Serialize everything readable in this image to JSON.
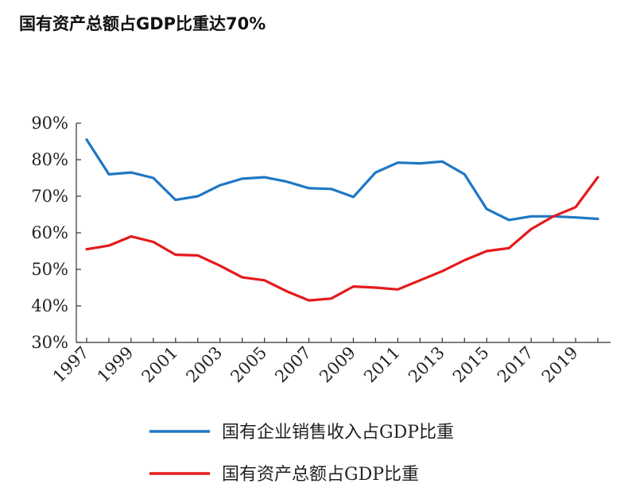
{
  "page": {
    "title": "国有资产总额占GDP比重达70%"
  },
  "chart_data": {
    "type": "line",
    "title": "",
    "xlabel": "",
    "ylabel": "",
    "x": [
      1997,
      1998,
      1999,
      2000,
      2001,
      2002,
      2003,
      2004,
      2005,
      2006,
      2007,
      2008,
      2009,
      2010,
      2011,
      2012,
      2013,
      2014,
      2015,
      2016,
      2017,
      2018,
      2019,
      2020
    ],
    "x_ticks": [
      "1997",
      "1999",
      "2001",
      "2003",
      "2005",
      "2007",
      "2009",
      "2011",
      "2013",
      "2015",
      "2017",
      "2019"
    ],
    "ylim": [
      30,
      90
    ],
    "y_ticks": [
      "30%",
      "40%",
      "50%",
      "60%",
      "70%",
      "80%",
      "90%"
    ],
    "grid": false,
    "legend_position": "bottom",
    "series": [
      {
        "name": "国有企业销售收入占GDP比重",
        "color": "#1f77c4",
        "values": [
          85.5,
          76.0,
          76.5,
          75.0,
          69.0,
          70.0,
          73.0,
          74.8,
          75.2,
          74.0,
          72.2,
          72.0,
          69.8,
          76.5,
          79.2,
          79.0,
          79.5,
          76.0,
          66.5,
          63.5,
          64.5,
          64.5,
          64.2,
          63.8
        ]
      },
      {
        "name": "国有资产总额占GDP比重",
        "color": "#e41a1c",
        "values": [
          55.5,
          56.5,
          59.0,
          57.5,
          54.0,
          53.8,
          51.0,
          47.8,
          47.0,
          44.0,
          41.5,
          42.0,
          45.3,
          45.0,
          44.5,
          47.0,
          49.5,
          52.5,
          55.0,
          55.8,
          61.0,
          64.5,
          67.0,
          75.2
        ]
      }
    ]
  }
}
